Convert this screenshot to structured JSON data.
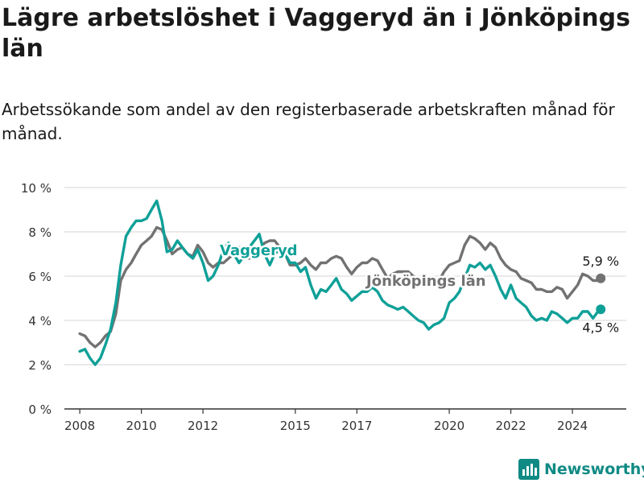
{
  "title": "Lägre arbetslöshet i Vaggeryd än i Jönköpings län",
  "subtitle": "Arbetssökande som andel av den registerbaserade arbetskraften månad för månad.",
  "brand": {
    "name": "Newsworthy",
    "icon": "bar-chart-logo-icon"
  },
  "colors": {
    "vaggeryd": "#0fa098",
    "lan": "#727272",
    "grid": "#dddddd",
    "axis": "#333333",
    "brand": "#0f8a84"
  },
  "chart_data": {
    "type": "line",
    "title": "Lägre arbetslöshet i Vaggeryd än i Jönköpings län",
    "xlabel": "",
    "ylabel": "",
    "xlim": [
      2007.5,
      2025.75
    ],
    "ylim": [
      0,
      10
    ],
    "grid": true,
    "y_ticks": [
      0,
      2,
      4,
      6,
      8,
      10
    ],
    "y_tick_labels": [
      "0 %",
      "2 %",
      "4 %",
      "6 %",
      "8 %",
      "10 %"
    ],
    "x_ticks": [
      2008,
      2010,
      2012,
      2015,
      2017,
      2020,
      2022,
      2024
    ],
    "x_tick_labels": [
      "2008",
      "2010",
      "2012",
      "2015",
      "2017",
      "2020",
      "2022",
      "2024"
    ],
    "series": [
      {
        "name": "Jönköpings län",
        "label": "Jönköpings län",
        "end_label": "5,9 %",
        "points": [
          [
            2008.0,
            3.4
          ],
          [
            2008.17,
            3.3
          ],
          [
            2008.33,
            3.0
          ],
          [
            2008.5,
            2.8
          ],
          [
            2008.67,
            3.0
          ],
          [
            2008.83,
            3.3
          ],
          [
            2009.0,
            3.5
          ],
          [
            2009.17,
            4.3
          ],
          [
            2009.33,
            5.8
          ],
          [
            2009.5,
            6.3
          ],
          [
            2009.67,
            6.6
          ],
          [
            2009.83,
            7.0
          ],
          [
            2010.0,
            7.4
          ],
          [
            2010.17,
            7.6
          ],
          [
            2010.33,
            7.8
          ],
          [
            2010.5,
            8.2
          ],
          [
            2010.67,
            8.1
          ],
          [
            2010.83,
            7.6
          ],
          [
            2011.0,
            7.0
          ],
          [
            2011.17,
            7.2
          ],
          [
            2011.33,
            7.3
          ],
          [
            2011.5,
            7.0
          ],
          [
            2011.67,
            6.9
          ],
          [
            2011.83,
            7.4
          ],
          [
            2012.0,
            7.1
          ],
          [
            2012.17,
            6.6
          ],
          [
            2012.33,
            6.4
          ],
          [
            2012.5,
            6.6
          ],
          [
            2012.67,
            6.6
          ],
          [
            2012.83,
            6.8
          ],
          [
            2013.0,
            7.0
          ],
          [
            2013.17,
            7.3
          ],
          [
            2013.33,
            7.0
          ],
          [
            2013.5,
            6.8
          ],
          [
            2013.67,
            6.9
          ],
          [
            2013.83,
            7.2
          ],
          [
            2014.0,
            7.5
          ],
          [
            2014.17,
            7.6
          ],
          [
            2014.33,
            7.6
          ],
          [
            2014.5,
            7.3
          ],
          [
            2014.67,
            7.0
          ],
          [
            2014.83,
            6.5
          ],
          [
            2015.0,
            6.5
          ],
          [
            2015.17,
            6.6
          ],
          [
            2015.33,
            6.8
          ],
          [
            2015.5,
            6.5
          ],
          [
            2015.67,
            6.3
          ],
          [
            2015.83,
            6.6
          ],
          [
            2016.0,
            6.6
          ],
          [
            2016.17,
            6.8
          ],
          [
            2016.33,
            6.9
          ],
          [
            2016.5,
            6.8
          ],
          [
            2016.67,
            6.4
          ],
          [
            2016.83,
            6.1
          ],
          [
            2017.0,
            6.4
          ],
          [
            2017.17,
            6.6
          ],
          [
            2017.33,
            6.6
          ],
          [
            2017.5,
            6.8
          ],
          [
            2017.67,
            6.7
          ],
          [
            2017.83,
            6.3
          ],
          [
            2018.0,
            5.9
          ],
          [
            2018.17,
            6.1
          ],
          [
            2018.33,
            6.2
          ],
          [
            2018.5,
            6.2
          ],
          [
            2018.67,
            6.2
          ],
          [
            2018.83,
            6.0
          ],
          [
            2019.0,
            5.9
          ],
          [
            2019.17,
            5.9
          ],
          [
            2019.33,
            5.7
          ],
          [
            2019.5,
            5.7
          ],
          [
            2019.67,
            5.8
          ],
          [
            2019.83,
            6.2
          ],
          [
            2020.0,
            6.5
          ],
          [
            2020.17,
            6.6
          ],
          [
            2020.33,
            6.7
          ],
          [
            2020.5,
            7.4
          ],
          [
            2020.67,
            7.8
          ],
          [
            2020.83,
            7.7
          ],
          [
            2021.0,
            7.5
          ],
          [
            2021.17,
            7.2
          ],
          [
            2021.33,
            7.5
          ],
          [
            2021.5,
            7.3
          ],
          [
            2021.67,
            6.8
          ],
          [
            2021.83,
            6.5
          ],
          [
            2022.0,
            6.3
          ],
          [
            2022.17,
            6.2
          ],
          [
            2022.33,
            5.9
          ],
          [
            2022.5,
            5.8
          ],
          [
            2022.67,
            5.7
          ],
          [
            2022.83,
            5.4
          ],
          [
            2023.0,
            5.4
          ],
          [
            2023.17,
            5.3
          ],
          [
            2023.33,
            5.3
          ],
          [
            2023.5,
            5.5
          ],
          [
            2023.67,
            5.4
          ],
          [
            2023.83,
            5.0
          ],
          [
            2024.0,
            5.3
          ],
          [
            2024.17,
            5.6
          ],
          [
            2024.33,
            6.1
          ],
          [
            2024.5,
            6.0
          ],
          [
            2024.67,
            5.8
          ],
          [
            2024.83,
            5.8
          ],
          [
            2024.92,
            5.9
          ]
        ]
      },
      {
        "name": "Vaggeryd",
        "label": "Vaggeryd",
        "end_label": "4,5 %",
        "points": [
          [
            2008.0,
            2.6
          ],
          [
            2008.17,
            2.7
          ],
          [
            2008.33,
            2.3
          ],
          [
            2008.5,
            2.0
          ],
          [
            2008.67,
            2.3
          ],
          [
            2008.83,
            2.9
          ],
          [
            2009.0,
            3.6
          ],
          [
            2009.17,
            4.8
          ],
          [
            2009.33,
            6.5
          ],
          [
            2009.5,
            7.8
          ],
          [
            2009.67,
            8.2
          ],
          [
            2009.83,
            8.5
          ],
          [
            2010.0,
            8.5
          ],
          [
            2010.17,
            8.6
          ],
          [
            2010.33,
            9.0
          ],
          [
            2010.5,
            9.4
          ],
          [
            2010.67,
            8.5
          ],
          [
            2010.83,
            7.1
          ],
          [
            2011.0,
            7.2
          ],
          [
            2011.17,
            7.6
          ],
          [
            2011.33,
            7.3
          ],
          [
            2011.5,
            7.0
          ],
          [
            2011.67,
            6.8
          ],
          [
            2011.83,
            7.2
          ],
          [
            2012.0,
            6.6
          ],
          [
            2012.17,
            5.8
          ],
          [
            2012.33,
            6.0
          ],
          [
            2012.5,
            6.5
          ],
          [
            2012.67,
            7.2
          ],
          [
            2012.83,
            7.5
          ],
          [
            2013.0,
            7.0
          ],
          [
            2013.17,
            6.6
          ],
          [
            2013.33,
            6.9
          ],
          [
            2013.5,
            7.3
          ],
          [
            2013.67,
            7.6
          ],
          [
            2013.83,
            7.9
          ],
          [
            2014.0,
            7.0
          ],
          [
            2014.17,
            6.5
          ],
          [
            2014.33,
            7.0
          ],
          [
            2014.5,
            7.2
          ],
          [
            2014.67,
            7.0
          ],
          [
            2014.83,
            6.6
          ],
          [
            2015.0,
            6.6
          ],
          [
            2015.17,
            6.2
          ],
          [
            2015.33,
            6.4
          ],
          [
            2015.5,
            5.6
          ],
          [
            2015.67,
            5.0
          ],
          [
            2015.83,
            5.4
          ],
          [
            2016.0,
            5.3
          ],
          [
            2016.17,
            5.6
          ],
          [
            2016.33,
            5.9
          ],
          [
            2016.5,
            5.4
          ],
          [
            2016.67,
            5.2
          ],
          [
            2016.83,
            4.9
          ],
          [
            2017.0,
            5.1
          ],
          [
            2017.17,
            5.3
          ],
          [
            2017.33,
            5.3
          ],
          [
            2017.5,
            5.5
          ],
          [
            2017.67,
            5.3
          ],
          [
            2017.83,
            4.9
          ],
          [
            2018.0,
            4.7
          ],
          [
            2018.17,
            4.6
          ],
          [
            2018.33,
            4.5
          ],
          [
            2018.5,
            4.6
          ],
          [
            2018.67,
            4.4
          ],
          [
            2018.83,
            4.2
          ],
          [
            2019.0,
            4.0
          ],
          [
            2019.17,
            3.9
          ],
          [
            2019.33,
            3.6
          ],
          [
            2019.5,
            3.8
          ],
          [
            2019.67,
            3.9
          ],
          [
            2019.83,
            4.1
          ],
          [
            2020.0,
            4.8
          ],
          [
            2020.17,
            5.0
          ],
          [
            2020.33,
            5.3
          ],
          [
            2020.5,
            5.9
          ],
          [
            2020.67,
            6.5
          ],
          [
            2020.83,
            6.4
          ],
          [
            2021.0,
            6.6
          ],
          [
            2021.17,
            6.3
          ],
          [
            2021.33,
            6.5
          ],
          [
            2021.5,
            6.0
          ],
          [
            2021.67,
            5.4
          ],
          [
            2021.83,
            5.0
          ],
          [
            2022.0,
            5.6
          ],
          [
            2022.17,
            5.0
          ],
          [
            2022.33,
            4.8
          ],
          [
            2022.5,
            4.6
          ],
          [
            2022.67,
            4.2
          ],
          [
            2022.83,
            4.0
          ],
          [
            2023.0,
            4.1
          ],
          [
            2023.17,
            4.0
          ],
          [
            2023.33,
            4.4
          ],
          [
            2023.5,
            4.3
          ],
          [
            2023.67,
            4.1
          ],
          [
            2023.83,
            3.9
          ],
          [
            2024.0,
            4.1
          ],
          [
            2024.17,
            4.1
          ],
          [
            2024.33,
            4.4
          ],
          [
            2024.5,
            4.4
          ],
          [
            2024.67,
            4.1
          ],
          [
            2024.83,
            4.4
          ],
          [
            2024.92,
            4.5
          ]
        ]
      }
    ]
  }
}
